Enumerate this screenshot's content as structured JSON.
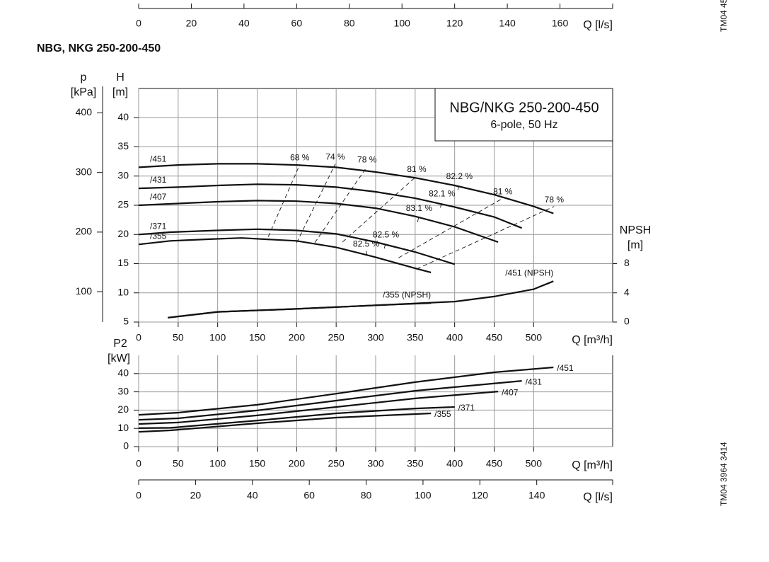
{
  "title": "NBG, NKG 250-200-450",
  "codes": [
    "TM04 45",
    "TM04 3964 3414"
  ],
  "top_axis": {
    "xlim": [
      0,
      180
    ],
    "xticks": [
      0,
      20,
      40,
      60,
      80,
      100,
      120,
      140,
      160
    ],
    "xlabel": "Q [l/s]"
  },
  "chart_data": [
    {
      "type": "line",
      "box_title": "NBG/NKG 250-200-450",
      "box_subtitle": "6-pole, 50 Hz",
      "xlabel": "Q [m³/h]",
      "xlim": [
        0,
        600
      ],
      "xticks": [
        0,
        50,
        100,
        150,
        200,
        250,
        300,
        350,
        400,
        450,
        500
      ],
      "ylabel": "H",
      "yunit": "[m]",
      "ylim": [
        5,
        45
      ],
      "yticks": [
        5,
        10,
        15,
        20,
        25,
        30,
        35,
        40
      ],
      "plabel": "p",
      "punit": "[kPa]",
      "plim": [
        49,
        441
      ],
      "pticks": [
        100,
        200,
        300,
        400
      ],
      "y2label": "NPSH",
      "y2unit": "[m]",
      "y2lim": [
        0,
        32
      ],
      "y2ticks": [
        0,
        4,
        8
      ],
      "grid": true,
      "color": "#111",
      "series": [
        {
          "name": "/451",
          "x": [
            0,
            50,
            100,
            150,
            200,
            250,
            300,
            350,
            400,
            450,
            500,
            525
          ],
          "values": [
            31.5,
            31.9,
            32.1,
            32.1,
            31.9,
            31.5,
            30.7,
            29.7,
            28.4,
            26.8,
            24.8,
            23.6
          ]
        },
        {
          "name": "/431",
          "x": [
            0,
            50,
            100,
            150,
            200,
            250,
            300,
            350,
            400,
            450,
            485
          ],
          "values": [
            27.9,
            28.1,
            28.4,
            28.6,
            28.5,
            28.1,
            27.3,
            26.2,
            24.7,
            23.0,
            21.1
          ]
        },
        {
          "name": "/407",
          "x": [
            0,
            50,
            100,
            150,
            200,
            250,
            300,
            350,
            400,
            455
          ],
          "values": [
            25.0,
            25.3,
            25.6,
            25.8,
            25.7,
            25.3,
            24.5,
            23.1,
            21.3,
            18.7
          ]
        },
        {
          "name": "/371",
          "x": [
            0,
            40,
            100,
            150,
            200,
            250,
            300,
            350,
            400
          ],
          "values": [
            20.0,
            20.4,
            20.7,
            20.9,
            20.7,
            20.1,
            18.7,
            17.0,
            14.9
          ]
        },
        {
          "name": "/355",
          "x": [
            0,
            40,
            90,
            130,
            200,
            250,
            300,
            350,
            370
          ],
          "values": [
            18.3,
            18.9,
            19.2,
            19.4,
            18.9,
            17.8,
            16.1,
            14.2,
            13.5
          ]
        }
      ],
      "npsh_series": [
        {
          "name": "/451 (NPSH)",
          "axis": "y2",
          "x": [
            37,
            100,
            200,
            300,
            400,
            450,
            500,
            525
          ],
          "values": [
            0.6,
            1.4,
            1.8,
            2.3,
            2.8,
            3.5,
            4.5,
            5.6
          ]
        },
        {
          "name": "/355 (NPSH)",
          "axis": "y2",
          "x": [
            37,
            100,
            200,
            300,
            370
          ],
          "values": [
            0.6,
            1.4,
            1.8,
            2.3,
            2.6
          ]
        }
      ],
      "efficiency_lines": [
        {
          "label": "68 %",
          "q": [
            164,
            204
          ],
          "h": [
            19.6,
            32.0
          ]
        },
        {
          "label": "74 %",
          "q": [
            200,
            249
          ],
          "h": [
            18.6,
            32.1
          ]
        },
        {
          "label": "78 %",
          "q": [
            223,
            289
          ],
          "h": [
            18.6,
            31.6
          ]
        },
        {
          "label": "81 %",
          "q": [
            258,
            352
          ],
          "h": [
            18.7,
            30.0
          ]
        },
        {
          "label": "82.2 %",
          "q": [
            404,
            406
          ],
          "h": [
            27.6,
            28.8
          ]
        },
        {
          "label": "82.1 %",
          "q": [
            382,
            384
          ],
          "h": [
            24.6,
            25.8
          ]
        },
        {
          "label": "83.1 %",
          "q": [
            353,
            355
          ],
          "h": [
            22.1,
            23.3
          ]
        },
        {
          "label": "82.5 %",
          "q": [
            311,
            313
          ],
          "h": [
            17.6,
            18.8
          ]
        },
        {
          "label": "82.5 %",
          "q": [
            288,
            290
          ],
          "h": [
            17.2,
            16.0
          ]
        },
        {
          "label": "81 %",
          "q": [
            329,
            461
          ],
          "h": [
            16.0,
            26.2
          ]
        },
        {
          "label": "78 %",
          "q": [
            352,
            526
          ],
          "h": [
            14.1,
            24.8
          ]
        }
      ]
    },
    {
      "type": "line",
      "xlabel": "Q [m³/h]",
      "xlim": [
        0,
        600
      ],
      "xticks": [
        0,
        50,
        100,
        150,
        200,
        250,
        300,
        350,
        400,
        450,
        500
      ],
      "ylabel": "P2",
      "yunit": "[kW]",
      "ylim": [
        0,
        50
      ],
      "yticks": [
        0,
        10,
        20,
        30,
        40
      ],
      "grid": true,
      "color": "#111",
      "x2label": "Q [l/s]",
      "x2lim": [
        0,
        166.7
      ],
      "x2ticks": [
        0,
        20,
        40,
        60,
        80,
        100,
        120,
        140
      ],
      "series": [
        {
          "name": "/451",
          "x": [
            0,
            50,
            150,
            250,
            350,
            450,
            525
          ],
          "values": [
            17.4,
            18.6,
            22.9,
            29.0,
            35.3,
            40.7,
            43.4
          ]
        },
        {
          "name": "/431",
          "x": [
            0,
            50,
            150,
            250,
            350,
            485
          ],
          "values": [
            14.7,
            15.5,
            19.8,
            25.2,
            30.6,
            36.0
          ]
        },
        {
          "name": "/407",
          "x": [
            0,
            50,
            150,
            250,
            350,
            455
          ],
          "values": [
            12.4,
            13.2,
            17.1,
            21.7,
            26.4,
            30.2
          ]
        },
        {
          "name": "/371",
          "x": [
            0,
            40,
            150,
            250,
            350,
            400
          ],
          "values": [
            10.1,
            10.3,
            14.3,
            18.2,
            20.9,
            21.7
          ]
        },
        {
          "name": "/355",
          "x": [
            0,
            40,
            150,
            250,
            370
          ],
          "values": [
            8.1,
            8.9,
            12.8,
            15.9,
            18.2
          ]
        }
      ]
    }
  ]
}
